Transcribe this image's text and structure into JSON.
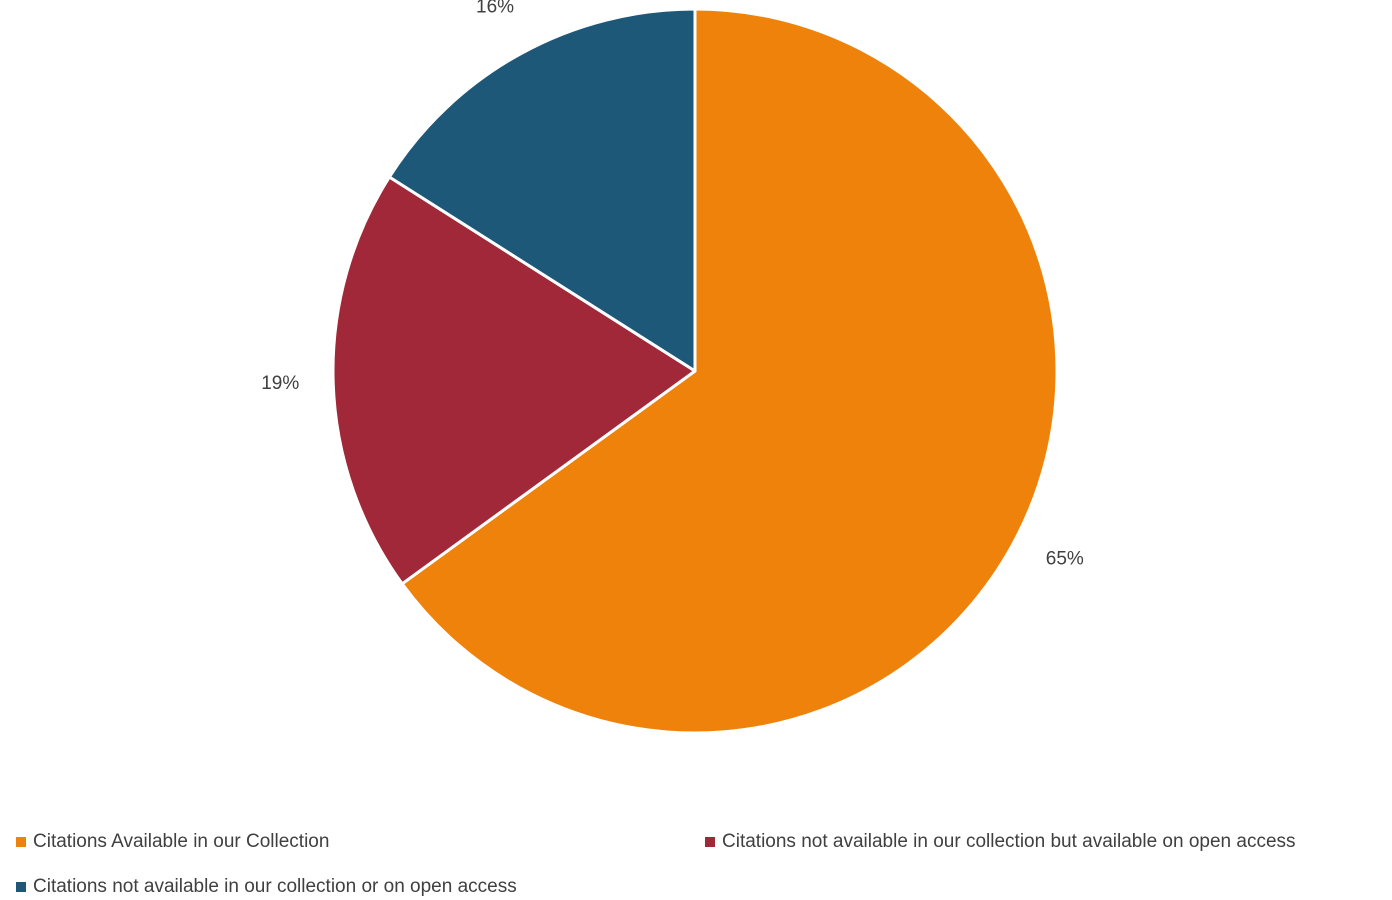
{
  "chart_data": {
    "type": "pie",
    "title": "",
    "slices": [
      {
        "name": "Citations Available in our Collection",
        "value": 65,
        "label": "65%",
        "color": "#EF820A"
      },
      {
        "name": "Citations not available in our collection but available on open access",
        "value": 19,
        "label": "19%",
        "color": "#A02838"
      },
      {
        "name": "Citations not available in our collection or on open access",
        "value": 16,
        "label": "16%",
        "color": "#1E5879"
      }
    ],
    "start_angle": "12 o'clock",
    "direction": "clockwise",
    "legend_position": "bottom"
  }
}
